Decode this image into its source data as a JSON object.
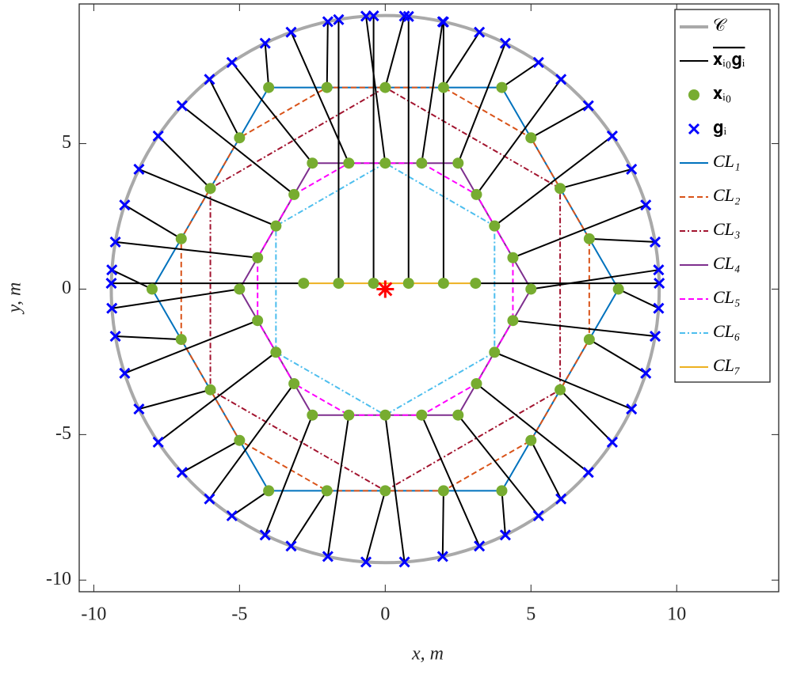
{
  "chart_data": {
    "type": "scatter",
    "xlabel": "x, m",
    "ylabel": "y, m",
    "xlim": [
      -10.5,
      13.5
    ],
    "ylim": [
      -10.4,
      9.8
    ],
    "xticks": [
      -10,
      -5,
      0,
      5,
      10
    ],
    "yticks": [
      -10,
      -5,
      0,
      5
    ],
    "circle": {
      "name": "𝒞",
      "radius": 9.4,
      "color": "#a9a9a9"
    },
    "segments": {
      "name": "𝐱ᵢ₀𝐠ᵢ",
      "color": "#000000"
    },
    "points": {
      "name": "𝐱ᵢ₀",
      "color": "#77ac30",
      "x": [
        8,
        7,
        6,
        5,
        4,
        2,
        0,
        -2,
        -4,
        -5,
        -6,
        -7,
        -8,
        -7,
        -6,
        -5,
        -4,
        -2,
        0,
        2,
        4,
        5,
        6,
        7,
        5,
        4.38,
        3.75,
        3.13,
        2.5,
        1.25,
        0,
        -1.25,
        -2.5,
        -3.13,
        -3.75,
        -4.38,
        -5,
        -4.38,
        -3.75,
        -3.13,
        -2.5,
        -1.25,
        0,
        1.25,
        2.5,
        3.13,
        3.75,
        4.38,
        -2.8,
        -1.6,
        -0.4,
        0.8,
        2.0,
        3.1
      ],
      "y": [
        0,
        1.73,
        3.46,
        5.2,
        6.93,
        6.93,
        6.93,
        6.93,
        6.93,
        5.2,
        3.46,
        1.73,
        0,
        -1.73,
        -3.46,
        -5.2,
        -6.93,
        -6.93,
        -6.93,
        -6.93,
        -6.93,
        -5.2,
        -3.46,
        -1.73,
        0,
        1.08,
        2.17,
        3.25,
        4.33,
        4.33,
        4.33,
        4.33,
        4.33,
        3.25,
        2.17,
        1.08,
        0,
        -1.08,
        -2.17,
        -3.25,
        -4.33,
        -4.33,
        -4.33,
        -4.33,
        -4.33,
        -3.25,
        -2.17,
        -1.08,
        0.2,
        0.2,
        0.2,
        0.2,
        0.2,
        0.2
      ]
    },
    "goals": {
      "name": "𝐠ᵢ",
      "color": "#0000ff",
      "x": [
        9.38,
        9.26,
        8.45,
        6.97,
        5.26,
        3.23,
        0.66,
        -1.97,
        -4.12,
        -6.03,
        -7.79,
        -8.94,
        -9.38,
        -9.26,
        -8.45,
        -6.97,
        -5.26,
        -3.23,
        -0.66,
        1.97,
        4.12,
        6.03,
        7.79,
        8.94,
        9.38,
        8.94,
        7.79,
        6.03,
        4.12,
        1.97,
        -0.66,
        -3.23,
        -5.26,
        -6.97,
        -8.45,
        -9.26,
        -9.38,
        -8.94,
        -7.79,
        -6.03,
        -4.12,
        -1.97,
        0.66,
        3.23,
        5.26,
        6.97,
        8.45,
        9.26,
        -9.4,
        -1.6,
        -0.4,
        0.8,
        2.0,
        9.4
      ],
      "y": [
        -0.66,
        1.62,
        4.12,
        6.3,
        7.79,
        8.83,
        9.38,
        9.19,
        8.45,
        7.21,
        5.26,
        2.89,
        0.66,
        -1.62,
        -4.12,
        -6.3,
        -7.79,
        -8.83,
        -9.38,
        -9.19,
        -8.45,
        -7.21,
        -5.26,
        -2.89,
        0.66,
        2.89,
        5.26,
        7.21,
        8.45,
        9.19,
        9.38,
        8.83,
        7.79,
        6.3,
        4.12,
        1.62,
        -0.66,
        -2.89,
        -5.26,
        -7.21,
        -8.45,
        -9.19,
        -9.38,
        -8.83,
        -7.79,
        -6.3,
        -4.12,
        -1.62,
        0.2,
        9.26,
        9.39,
        9.37,
        9.18,
        0.2
      ]
    },
    "series": [
      {
        "name": "CL₁",
        "color": "#0072bd",
        "dash": "solid",
        "closed": true,
        "x": [
          4,
          -4,
          -8,
          -4,
          4,
          8
        ],
        "y": [
          6.93,
          6.93,
          0,
          -6.93,
          -6.93,
          0
        ]
      },
      {
        "name": "CL₂",
        "color": "#d95319",
        "dash": "dashed",
        "closed": true,
        "x": [
          2,
          -2,
          -5,
          -7,
          -7,
          -5,
          -2,
          2,
          5,
          7,
          7,
          5
        ],
        "y": [
          6.93,
          6.93,
          5.2,
          1.73,
          -1.73,
          -5.2,
          -6.93,
          -6.93,
          -5.2,
          -1.73,
          1.73,
          5.2
        ]
      },
      {
        "name": "CL₃",
        "color": "#a2142f",
        "dash": "dashdot",
        "closed": true,
        "x": [
          0,
          -6,
          -6,
          0,
          6,
          6
        ],
        "y": [
          6.93,
          3.46,
          -3.46,
          -6.93,
          -3.46,
          3.46
        ]
      },
      {
        "name": "CL₄",
        "color": "#7e2f8e",
        "dash": "solid",
        "closed": true,
        "x": [
          2.5,
          -2.5,
          -5,
          -2.5,
          2.5,
          5
        ],
        "y": [
          4.33,
          4.33,
          0,
          -4.33,
          -4.33,
          0
        ]
      },
      {
        "name": "CL₅",
        "color": "#ff00ff",
        "dash": "dashed",
        "closed": true,
        "x": [
          1.25,
          -1.25,
          -3.13,
          -4.38,
          -4.38,
          -3.13,
          -1.25,
          1.25,
          3.13,
          4.38,
          4.38,
          3.13
        ],
        "y": [
          4.33,
          4.33,
          3.25,
          1.08,
          -1.08,
          -3.25,
          -4.33,
          -4.33,
          -3.25,
          -1.08,
          1.08,
          3.25
        ]
      },
      {
        "name": "CL₆",
        "color": "#4dbeee",
        "dash": "dashdot",
        "closed": true,
        "x": [
          0,
          -3.75,
          -3.75,
          0,
          3.75,
          3.75
        ],
        "y": [
          4.33,
          2.17,
          -2.17,
          -4.33,
          -2.17,
          2.17
        ]
      },
      {
        "name": "CL₇",
        "color": "#edb120",
        "dash": "solid",
        "closed": false,
        "x": [
          -2.8,
          3.1
        ],
        "y": [
          0.2,
          0.2
        ]
      }
    ],
    "center": {
      "x": 0,
      "y": 0,
      "color": "#ff0000"
    }
  }
}
